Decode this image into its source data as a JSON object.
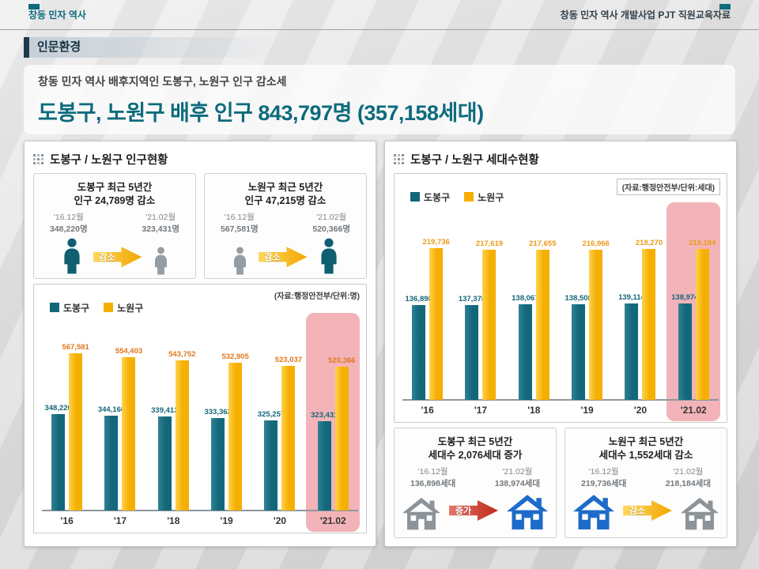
{
  "colors": {
    "accent": "#0d6b7c",
    "highlight_pink": "#f2b4b8",
    "dobong_bar": "#13677a",
    "nowon_bar": "#f5af00"
  },
  "header": {
    "top_left": "창동 민자 역사",
    "top_right": "창동 민자 역사 개발사업 PJT 직원교육자료",
    "section": "인문환경"
  },
  "intro": {
    "subtitle": "창동 민자 역사 배후지역인 도봉구, 노원구 인구 감소세",
    "title": "도봉구, 노원구 배후 인구 843,797명 (357,158세대)"
  },
  "left_panel": {
    "title": "도봉구 / 노원구 인구현황",
    "stat_boxes": [
      {
        "title_line1": "도봉구 최근 5년간",
        "title_line2": "인구 24,789명 감소",
        "from_label": "'16.12월",
        "from_value": "348,220명",
        "to_label": "'21.02월",
        "to_value": "323,431명",
        "arrow_label": "감소"
      },
      {
        "title_line1": "노원구 최근 5년간",
        "title_line2": "인구 47,215명 감소",
        "from_label": "'16.12월",
        "from_value": "567,581명",
        "to_label": "'21.02월",
        "to_value": "520,366명",
        "arrow_label": "감소"
      }
    ]
  },
  "right_panel": {
    "title": "도봉구 / 노원구 세대수현황",
    "stat_boxes": [
      {
        "title_line1": "도봉구 최근 5년간",
        "title_line2": "세대수 2,076세대 증가",
        "from_label": "'16.12월",
        "from_value": "136,898세대",
        "to_label": "'21.02월",
        "to_value": "138,974세대",
        "arrow_label": "증가"
      },
      {
        "title_line1": "노원구 최근 5년간",
        "title_line2": "세대수 1,552세대 감소",
        "from_label": "'16.12월",
        "from_value": "219,736세대",
        "to_label": "'21.02월",
        "to_value": "218,184세대",
        "arrow_label": "감소"
      }
    ]
  },
  "chart_data": [
    {
      "type": "bar",
      "title": "도봉구 / 노원구 인구현황",
      "source_note": "(자료:행정안전부/단위:명)",
      "categories": [
        "'16",
        "'17",
        "'18",
        "'19",
        "'20",
        "'21.02"
      ],
      "series": [
        {
          "name": "도봉구",
          "color": "#13677a",
          "color_light": "#2f8294",
          "label_color": "#13677a",
          "values": [
            348220,
            344166,
            339413,
            333362,
            325257,
            323431
          ]
        },
        {
          "name": "노원구",
          "color": "#f5af00",
          "color_light": "#ffd24d",
          "label_color": "#e2751c",
          "values": [
            567581,
            554403,
            543752,
            532905,
            523037,
            520366
          ]
        }
      ],
      "ylim": [
        0,
        600000
      ],
      "ylabel": "명",
      "grid": false,
      "legend_position": "top-left",
      "highlight_category": "'21.02"
    },
    {
      "type": "bar",
      "title": "도봉구 / 노원구 세대수현황",
      "source_note": "(자료:행정안전부/단위:세대)",
      "categories": [
        "'16",
        "'17",
        "'18",
        "'19",
        "'20",
        "'21.02"
      ],
      "series": [
        {
          "name": "도봉구",
          "color": "#13677a",
          "color_light": "#2f8294",
          "label_color": "#13677a",
          "values": [
            136898,
            137378,
            138067,
            138508,
            139114,
            138974
          ]
        },
        {
          "name": "노원구",
          "color": "#f5af00",
          "color_light": "#ffd24d",
          "label_color": "#ec9b18",
          "values": [
            219736,
            217619,
            217655,
            216966,
            218270,
            218184
          ]
        }
      ],
      "ylim": [
        0,
        240000
      ],
      "ylabel": "세대",
      "grid": false,
      "legend_position": "top-left",
      "highlight_category": "'21.02"
    }
  ]
}
